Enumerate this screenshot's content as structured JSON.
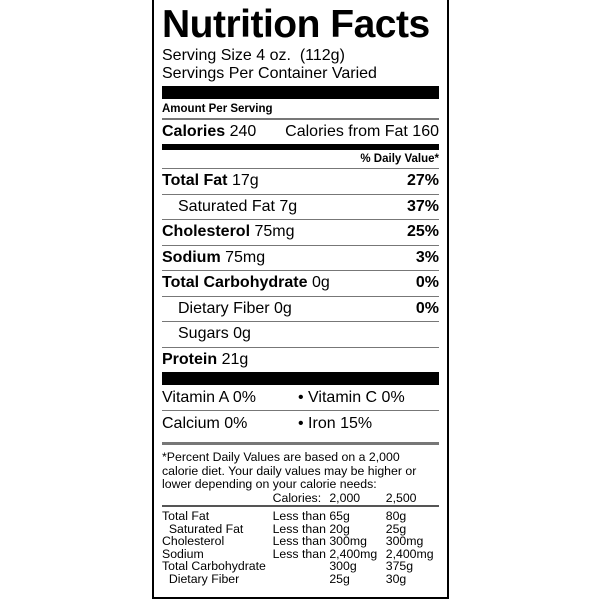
{
  "title": "Nutrition Facts",
  "serving_size": "Serving Size 4 oz.  (112g)",
  "servings_per_container": "Servings Per Container Varied",
  "amount_per_serving": "Amount Per Serving",
  "calories": {
    "label": "Calories",
    "value": "240",
    "from_fat": "Calories from Fat 160"
  },
  "daily_value_header": "% Daily Value*",
  "nutrients": [
    {
      "label": "Total Fat",
      "amount": "17g",
      "dv": "27%"
    },
    {
      "label": "Saturated Fat",
      "amount": "7g",
      "dv": "37%"
    },
    {
      "label": "Cholesterol",
      "amount": "75mg",
      "dv": "25%"
    },
    {
      "label": "Sodium",
      "amount": "75mg",
      "dv": "3%"
    },
    {
      "label": "Total Carbohydrate",
      "amount": "0g",
      "dv": "0%"
    },
    {
      "label": "Dietary Fiber",
      "amount": "0g",
      "dv": "0%"
    },
    {
      "label": "Sugars",
      "amount": "0g",
      "dv": ""
    },
    {
      "label": "Protein",
      "amount": "21g",
      "dv": ""
    }
  ],
  "vitamins": [
    [
      "Vitamin A 0%",
      "• Vitamin C 0%"
    ],
    [
      "Calcium 0%",
      "• Iron 15%"
    ]
  ],
  "footnote": "*Percent Daily Values are based on a 2,000 calorie diet. Your daily values may be higher or lower depending on your calorie needs:",
  "reference": {
    "header": [
      "",
      "Calories:",
      "2,000",
      "2,500"
    ],
    "rows": [
      [
        "Total Fat",
        "Less than",
        "65g",
        "80g"
      ],
      [
        "  Saturated Fat",
        "Less than",
        "20g",
        "25g"
      ],
      [
        "Cholesterol",
        "Less than",
        "300mg",
        "300mg"
      ],
      [
        "Sodium",
        "Less than",
        "2,400mg",
        "2,400mg"
      ],
      [
        "Total Carbohydrate",
        "",
        "300g",
        "375g"
      ],
      [
        "  Dietary Fiber",
        "",
        "25g",
        "30g"
      ]
    ]
  }
}
